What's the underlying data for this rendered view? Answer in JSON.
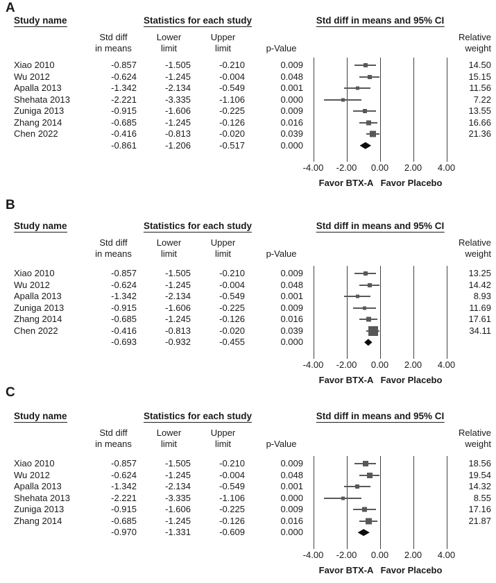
{
  "colors": {
    "marker": "#58585a",
    "ci_line": "#58585a",
    "diamond": "#0d0d0d",
    "gridline": "#404040",
    "text": "#1a1a1a",
    "background": "#ffffff"
  },
  "shared": {
    "headers": {
      "study": "Study name",
      "stats": "Statistics for each study",
      "ci": "Std diff in means and 95% CI"
    },
    "subheaders": {
      "std_diff_line1": "Std diff",
      "std_diff_line2": "in means",
      "lower_line1": "Lower",
      "lower_line2": "limit",
      "upper_line1": "Upper",
      "upper_line2": "limit",
      "p_value": "p-Value",
      "weight_line1": "Relative",
      "weight_line2": "weight"
    },
    "axis": {
      "ticks": [
        {
          "label": "-4.00",
          "value": -4
        },
        {
          "label": "-2.00",
          "value": -2
        },
        {
          "label": "0.00",
          "value": 0
        },
        {
          "label": "2.00",
          "value": 2
        },
        {
          "label": "4.00",
          "value": 4
        }
      ],
      "range": [
        -4.4,
        4.4
      ]
    },
    "favor_left": "Favor BTX-A",
    "favor_right": "Favor Placebo"
  },
  "chart_data": [
    {
      "type": "scatter",
      "subtype": "forest-plot",
      "panel_label": "A",
      "effect_measure": "Std diff in means",
      "x_range": [
        -4.4,
        4.4
      ],
      "x_ticks": [
        -4,
        -2,
        0,
        2,
        4
      ],
      "studies": [
        {
          "name": "Xiao 2010",
          "std_diff": "-0.857",
          "lower": "-1.505",
          "upper": "-0.210",
          "p_value": "0.009",
          "weight": "14.50"
        },
        {
          "name": "Wu 2012",
          "std_diff": "-0.624",
          "lower": "-1.245",
          "upper": "-0.004",
          "p_value": "0.048",
          "weight": "15.15"
        },
        {
          "name": "Apalla 2013",
          "std_diff": "-1.342",
          "lower": "-2.134",
          "upper": "-0.549",
          "p_value": "0.001",
          "weight": "11.56"
        },
        {
          "name": "Shehata 2013",
          "std_diff": "-2.221",
          "lower": "-3.335",
          "upper": "-1.106",
          "p_value": "0.000",
          "weight": "7.22"
        },
        {
          "name": "Zuniga 2013",
          "std_diff": "-0.915",
          "lower": "-1.606",
          "upper": "-0.225",
          "p_value": "0.009",
          "weight": "13.55"
        },
        {
          "name": "Zhang 2014",
          "std_diff": "-0.685",
          "lower": "-1.245",
          "upper": "-0.126",
          "p_value": "0.016",
          "weight": "16.66"
        },
        {
          "name": "Chen 2022",
          "std_diff": "-0.416",
          "lower": "-0.813",
          "upper": "-0.020",
          "p_value": "0.039",
          "weight": "21.36"
        }
      ],
      "summary": {
        "name": "",
        "std_diff": "-0.861",
        "lower": "-1.206",
        "upper": "-0.517",
        "p_value": "0.000",
        "weight": ""
      }
    },
    {
      "type": "scatter",
      "subtype": "forest-plot",
      "panel_label": "B",
      "effect_measure": "Std diff in means",
      "x_range": [
        -4.4,
        4.4
      ],
      "x_ticks": [
        -4,
        -2,
        0,
        2,
        4
      ],
      "studies": [
        {
          "name": "Xiao 2010",
          "std_diff": "-0.857",
          "lower": "-1.505",
          "upper": "-0.210",
          "p_value": "0.009",
          "weight": "13.25"
        },
        {
          "name": "Wu 2012",
          "std_diff": "-0.624",
          "lower": "-1.245",
          "upper": "-0.004",
          "p_value": "0.048",
          "weight": "14.42"
        },
        {
          "name": "Apalla 2013",
          "std_diff": "-1.342",
          "lower": "-2.134",
          "upper": "-0.549",
          "p_value": "0.001",
          "weight": "8.93"
        },
        {
          "name": "Zuniga 2013",
          "std_diff": "-0.915",
          "lower": "-1.606",
          "upper": "-0.225",
          "p_value": "0.009",
          "weight": "11.69"
        },
        {
          "name": "Zhang 2014",
          "std_diff": "-0.685",
          "lower": "-1.245",
          "upper": "-0.126",
          "p_value": "0.016",
          "weight": "17.61"
        },
        {
          "name": "Chen 2022",
          "std_diff": "-0.416",
          "lower": "-0.813",
          "upper": "-0.020",
          "p_value": "0.039",
          "weight": "34.11"
        }
      ],
      "summary": {
        "name": "",
        "std_diff": "-0.693",
        "lower": "-0.932",
        "upper": "-0.455",
        "p_value": "0.000",
        "weight": ""
      }
    },
    {
      "type": "scatter",
      "subtype": "forest-plot",
      "panel_label": "C",
      "effect_measure": "Std diff in means",
      "x_range": [
        -4.4,
        4.4
      ],
      "x_ticks": [
        -4,
        -2,
        0,
        2,
        4
      ],
      "studies": [
        {
          "name": "Xiao 2010",
          "std_diff": "-0.857",
          "lower": "-1.505",
          "upper": "-0.210",
          "p_value": "0.009",
          "weight": "18.56"
        },
        {
          "name": "Wu 2012",
          "std_diff": "-0.624",
          "lower": "-1.245",
          "upper": "-0.004",
          "p_value": "0.048",
          "weight": "19.54"
        },
        {
          "name": "Apalla 2013",
          "std_diff": "-1.342",
          "lower": "-2.134",
          "upper": "-0.549",
          "p_value": "0.001",
          "weight": "14.32"
        },
        {
          "name": "Shehata 2013",
          "std_diff": "-2.221",
          "lower": "-3.335",
          "upper": "-1.106",
          "p_value": "0.000",
          "weight": "8.55"
        },
        {
          "name": "Zuniga 2013",
          "std_diff": "-0.915",
          "lower": "-1.606",
          "upper": "-0.225",
          "p_value": "0.009",
          "weight": "17.16"
        },
        {
          "name": "Zhang 2014",
          "std_diff": "-0.685",
          "lower": "-1.245",
          "upper": "-0.126",
          "p_value": "0.016",
          "weight": "21.87"
        }
      ],
      "summary": {
        "name": "",
        "std_diff": "-0.970",
        "lower": "-1.331",
        "upper": "-0.609",
        "p_value": "0.000",
        "weight": ""
      }
    }
  ]
}
